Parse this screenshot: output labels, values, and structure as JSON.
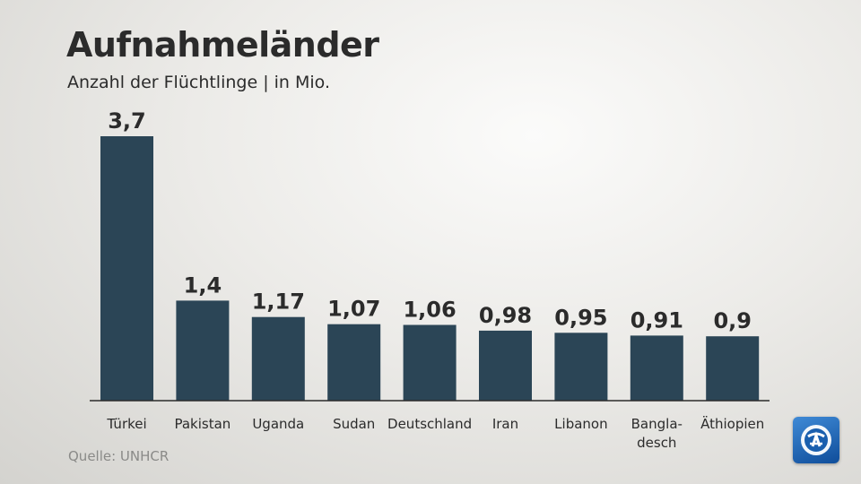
{
  "header": {
    "title": "Aufnahmeländer",
    "subtitle": "Anzahl der Flüchtlinge | in Mio."
  },
  "footer": {
    "source": "Quelle: UNHCR"
  },
  "logo": {
    "icon": "tagesschau-logo-icon",
    "color": "#1f6bbf"
  },
  "colors": {
    "bar": "#2b4556",
    "axis": "#2b2b2b",
    "text": "#2b2b2b"
  },
  "chart_data": {
    "type": "bar",
    "categories": [
      "Türkei",
      "Pakistan",
      "Uganda",
      "Sudan",
      "Deutschland",
      "Iran",
      "Libanon",
      "Bangla-\ndesch",
      "Äthiopien"
    ],
    "values": [
      3.7,
      1.4,
      1.17,
      1.07,
      1.06,
      0.98,
      0.95,
      0.91,
      0.9
    ],
    "value_labels": [
      "3,7",
      "1,4",
      "1,17",
      "1,07",
      "1,06",
      "0,98",
      "0,95",
      "0,91",
      "0,9"
    ],
    "title": "Aufnahmeländer",
    "subtitle": "Anzahl der Flüchtlinge | in Mio.",
    "xlabel": "",
    "ylabel": "",
    "ylim": [
      0,
      3.7
    ],
    "grid": false,
    "legend": "none"
  }
}
